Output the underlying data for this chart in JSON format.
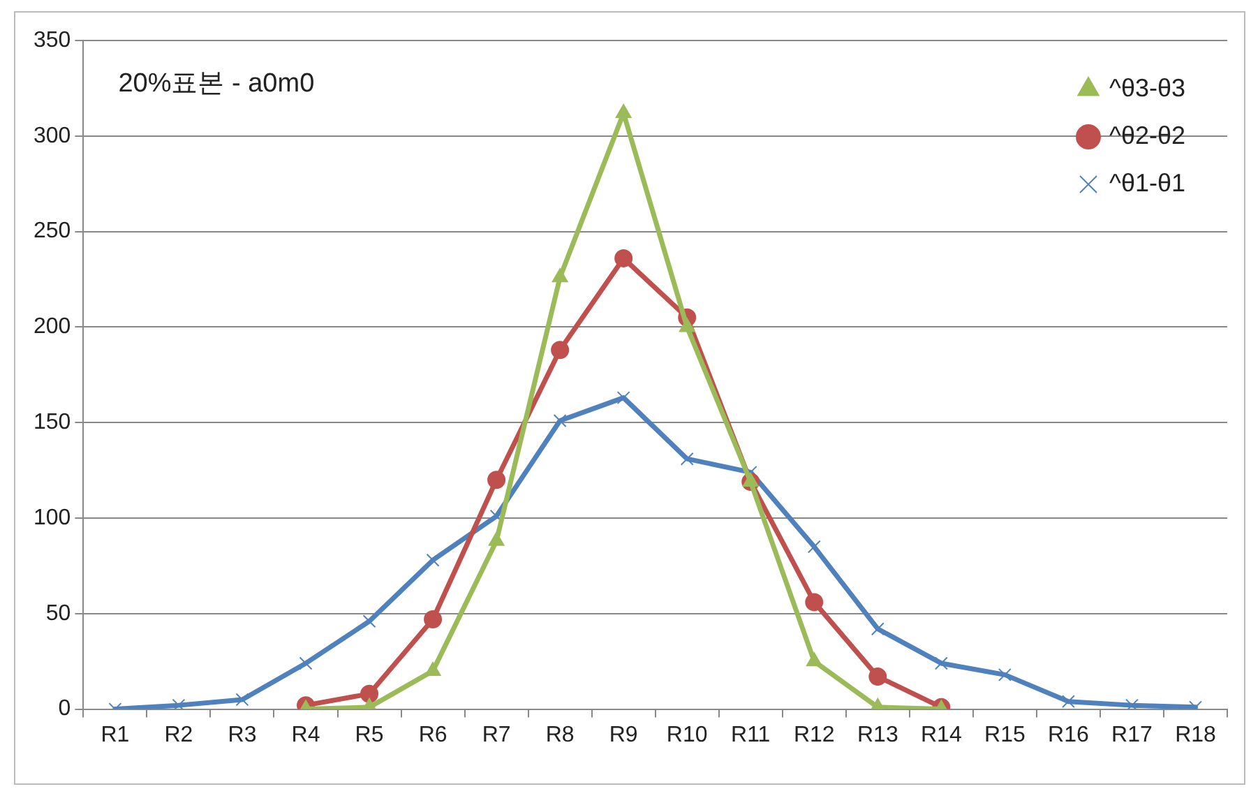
{
  "chart_data": {
    "type": "line",
    "categories": [
      "R1",
      "R2",
      "R3",
      "R4",
      "R5",
      "R6",
      "R7",
      "R8",
      "R9",
      "R10",
      "R11",
      "R12",
      "R13",
      "R14",
      "R15",
      "R16",
      "R17",
      "R18"
    ],
    "series": [
      {
        "name": "^θ3-θ3",
        "color": "#9bbb59",
        "marker": "triangle",
        "values": [
          null,
          null,
          null,
          0,
          1,
          20,
          88,
          226,
          312,
          200,
          119,
          25,
          1,
          0,
          null,
          null,
          null,
          null
        ]
      },
      {
        "name": "^θ2-θ2",
        "color": "#c0504d",
        "marker": "circle",
        "values": [
          null,
          null,
          null,
          2,
          8,
          47,
          120,
          188,
          236,
          205,
          119,
          56,
          17,
          1,
          null,
          null,
          null,
          null
        ]
      },
      {
        "name": "^θ1-θ1",
        "color": "#4f81bd",
        "marker": "cross",
        "values": [
          0,
          2,
          5,
          24,
          46,
          78,
          101,
          151,
          163,
          131,
          124,
          85,
          42,
          24,
          18,
          4,
          2,
          1
        ]
      }
    ],
    "ylim": [
      0,
      350
    ],
    "yticks": [
      0,
      50,
      100,
      150,
      200,
      250,
      300,
      350
    ],
    "grid": "y",
    "legend": "top right",
    "annotations": [
      "20%표본 - a0m0"
    ]
  }
}
